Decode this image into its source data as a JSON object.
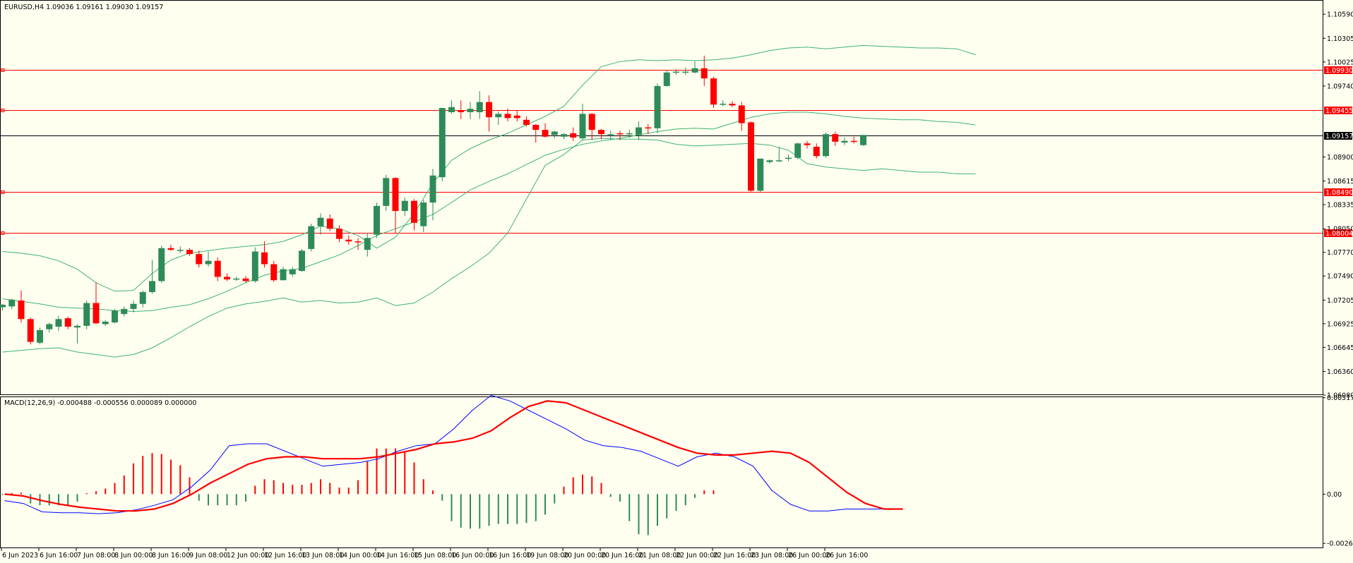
{
  "colors": {
    "background": "#fffff0",
    "bull": "#2e8b57",
    "bear": "#ff0000",
    "band": "#3cb371",
    "macd": "#0000ff",
    "signal": "#ff0000",
    "level_line": "#ff0000",
    "price_line": "#000000"
  },
  "header": {
    "symbol_text": "EURUSD,H4  1.09036 1.09161 1.09030 1.09157",
    "macd_text": "MACD(12,26,9) -0.000488 -0.000556 0.000089 0.000000"
  },
  "chart_data": [
    {
      "type": "candlestick",
      "title": "EURUSD,H4",
      "ylim": [
        1.0608,
        1.1075
      ],
      "y_ticks": [
        "1.10590",
        "1.10305",
        "1.10025",
        "1.09740",
        "1.08900",
        "1.08615",
        "1.08335",
        "1.08050",
        "1.07770",
        "1.07490",
        "1.07205",
        "1.06925",
        "1.06645",
        "1.06360",
        "1.06080"
      ],
      "price_levels": [
        {
          "label": "1.09930",
          "value": 1.0993
        },
        {
          "label": "1.09455",
          "value": 1.09455
        },
        {
          "label": "1.08490",
          "value": 1.0849
        },
        {
          "label": "1.08004",
          "value": 1.08004
        }
      ],
      "current_price": {
        "label": "1.09157",
        "value": 1.09157
      },
      "candles_ohlc": [
        [
          1.0712,
          1.0716,
          1.0708,
          1.0715
        ],
        [
          1.0713,
          1.0722,
          1.071,
          1.0721
        ],
        [
          1.072,
          1.0732,
          1.0694,
          1.0698
        ],
        [
          1.0698,
          1.07,
          1.0668,
          1.0671
        ],
        [
          1.067,
          1.0688,
          1.0668,
          1.0685
        ],
        [
          1.0686,
          1.0694,
          1.0682,
          1.0692
        ],
        [
          1.0689,
          1.0702,
          1.0684,
          1.0698
        ],
        [
          1.0699,
          1.0701,
          1.0686,
          1.0689
        ],
        [
          1.0688,
          1.0692,
          1.0669,
          1.069
        ],
        [
          1.069,
          1.072,
          1.0686,
          1.0717
        ],
        [
          1.0717,
          1.0741,
          1.0692,
          1.0693
        ],
        [
          1.0692,
          1.0697,
          1.069,
          1.0695
        ],
        [
          1.0694,
          1.071,
          1.0693,
          1.0708
        ],
        [
          1.0704,
          1.0713,
          1.0701,
          1.071
        ],
        [
          1.071,
          1.072,
          1.0706,
          1.0716
        ],
        [
          1.0716,
          1.0732,
          1.0712,
          1.073
        ],
        [
          1.073,
          1.0768,
          1.0728,
          1.0743
        ],
        [
          1.0743,
          1.0785,
          1.0741,
          1.0782
        ],
        [
          1.0782,
          1.0786,
          1.0779,
          1.078
        ],
        [
          1.0779,
          1.0784,
          1.0776,
          1.078
        ],
        [
          1.078,
          1.0782,
          1.0773,
          1.0775
        ],
        [
          1.0775,
          1.0779,
          1.0759,
          1.0763
        ],
        [
          1.0763,
          1.0778,
          1.076,
          1.0767
        ],
        [
          1.0767,
          1.0771,
          1.0743,
          1.0748
        ],
        [
          1.0748,
          1.0752,
          1.0743,
          1.0745
        ],
        [
          1.0745,
          1.0748,
          1.0743,
          1.0746
        ],
        [
          1.0746,
          1.0749,
          1.0741,
          1.0743
        ],
        [
          1.0743,
          1.0783,
          1.0741,
          1.0778
        ],
        [
          1.0777,
          1.079,
          1.0759,
          1.0763
        ],
        [
          1.0763,
          1.0767,
          1.0742,
          1.0744
        ],
        [
          1.0744,
          1.076,
          1.0744,
          1.0757
        ],
        [
          1.0751,
          1.076,
          1.0748,
          1.0757
        ],
        [
          1.0755,
          1.0781,
          1.0754,
          1.0779
        ],
        [
          1.0781,
          1.0811,
          1.0778,
          1.0808
        ],
        [
          1.0808,
          1.0823,
          1.0798,
          1.0818
        ],
        [
          1.0817,
          1.0822,
          1.0802,
          1.0805
        ],
        [
          1.0805,
          1.0809,
          1.0789,
          1.0793
        ],
        [
          1.0792,
          1.0797,
          1.0786,
          1.079
        ],
        [
          1.079,
          1.0794,
          1.078,
          1.0789
        ],
        [
          1.078,
          1.08,
          1.0772,
          1.0794
        ],
        [
          1.0798,
          1.0836,
          1.0794,
          1.0832
        ],
        [
          1.0832,
          1.0869,
          1.0826,
          1.0865
        ],
        [
          1.0865,
          1.0866,
          1.08,
          1.0826
        ],
        [
          1.0826,
          1.0842,
          1.082,
          1.0838
        ],
        [
          1.0838,
          1.084,
          1.0803,
          1.0812
        ],
        [
          1.0808,
          1.0839,
          1.0801,
          1.0836
        ],
        [
          1.0836,
          1.0876,
          1.0815,
          1.0868
        ],
        [
          1.0866,
          1.0948,
          1.0861,
          1.0948
        ],
        [
          1.0943,
          1.0957,
          1.0941,
          1.0949
        ],
        [
          1.0945,
          1.0957,
          1.0935,
          1.0943
        ],
        [
          1.0943,
          1.0955,
          1.0935,
          1.0947
        ],
        [
          1.0943,
          1.0968,
          1.0935,
          1.0955
        ],
        [
          1.0955,
          1.0963,
          1.092,
          1.0937
        ],
        [
          1.0937,
          1.0944,
          1.0928,
          1.0941
        ],
        [
          1.0941,
          1.0947,
          1.0932,
          1.0936
        ],
        [
          1.0939,
          1.0945,
          1.0932,
          1.0936
        ],
        [
          1.0934,
          1.0938,
          1.0926,
          1.0928
        ],
        [
          1.0928,
          1.0929,
          1.0907,
          1.0922
        ],
        [
          1.0922,
          1.093,
          1.0913,
          1.0914
        ],
        [
          1.0916,
          1.0921,
          1.0912,
          1.092
        ],
        [
          1.0914,
          1.0918,
          1.0911,
          1.0917
        ],
        [
          1.0918,
          1.0925,
          1.0909,
          1.0913
        ],
        [
          1.0912,
          1.0953,
          1.091,
          1.0941
        ],
        [
          1.0941,
          1.0942,
          1.091,
          1.0922
        ],
        [
          1.0922,
          1.0923,
          1.0911,
          1.0917
        ],
        [
          1.0917,
          1.0921,
          1.091,
          1.0917
        ],
        [
          1.0918,
          1.0921,
          1.091,
          1.0917
        ],
        [
          1.0917,
          1.0922,
          1.0913,
          1.0918
        ],
        [
          1.0916,
          1.0932,
          1.091,
          1.0925
        ],
        [
          1.0925,
          1.0929,
          1.0917,
          1.0924
        ],
        [
          1.0924,
          1.0977,
          1.0918,
          1.0974
        ],
        [
          1.0974,
          1.0993,
          1.0973,
          1.099
        ],
        [
          1.099,
          1.0994,
          1.0987,
          1.0991
        ],
        [
          1.099,
          1.0996,
          1.0987,
          1.0991
        ],
        [
          1.099,
          1.1003,
          1.0989,
          1.0995
        ],
        [
          1.0995,
          1.101,
          1.0974,
          1.0983
        ],
        [
          1.0983,
          1.0985,
          1.0948,
          1.0952
        ],
        [
          1.0953,
          1.0957,
          1.095,
          1.0953
        ],
        [
          1.0953,
          1.0956,
          1.0949,
          1.0951
        ],
        [
          1.0951,
          1.0955,
          1.0921,
          1.093
        ],
        [
          1.0931,
          1.0932,
          1.0849,
          1.085
        ],
        [
          1.085,
          1.0888,
          1.0848,
          1.0888
        ],
        [
          1.0884,
          1.0887,
          1.0882,
          1.0886
        ],
        [
          1.0885,
          1.0902,
          1.0884,
          1.0886
        ],
        [
          1.0888,
          1.0893,
          1.0885,
          1.0889
        ],
        [
          1.0889,
          1.0907,
          1.0887,
          1.0906
        ],
        [
          1.0906,
          1.0909,
          1.09,
          1.0904
        ],
        [
          1.0902,
          1.0906,
          1.0888,
          1.0891
        ],
        [
          1.0891,
          1.0919,
          1.0889,
          1.0917
        ],
        [
          1.0917,
          1.092,
          1.0903,
          1.0908
        ],
        [
          1.0907,
          1.0913,
          1.0904,
          1.0909
        ],
        [
          1.0909,
          1.0914,
          1.0906,
          1.0908
        ],
        [
          1.0904,
          1.0916,
          1.0903,
          1.0916
        ]
      ],
      "bollinger_upper": [
        1.0778,
        1.0776,
        1.0773,
        1.0767,
        1.0757,
        1.0741,
        1.0731,
        1.0732,
        1.0752,
        1.0768,
        1.0776,
        1.0779,
        1.0782,
        1.0784,
        1.0786,
        1.079,
        1.0798,
        1.0808,
        1.0805,
        1.0797,
        1.0782,
        1.0795,
        1.0823,
        1.0859,
        1.0886,
        1.09,
        1.091,
        1.0918,
        1.0928,
        1.0938,
        1.095,
        1.0975,
        1.0997,
        1.1003,
        1.1005,
        1.1004,
        1.1005,
        1.1004,
        1.1005,
        1.1007,
        1.1011,
        1.1016,
        1.1019,
        1.102,
        1.1018,
        1.102,
        1.1022,
        1.1021,
        1.102,
        1.1019,
        1.1019,
        1.1018,
        1.1011
      ],
      "bollinger_mid": [
        1.0722,
        1.0719,
        1.0716,
        1.0712,
        1.0711,
        1.071,
        1.0708,
        1.0707,
        1.0708,
        1.0712,
        1.0715,
        1.0722,
        1.0731,
        1.0741,
        1.075,
        1.0755,
        1.0758,
        1.0766,
        1.0774,
        1.0785,
        1.0797,
        1.0805,
        1.0813,
        1.0822,
        1.0836,
        1.0851,
        1.0861,
        1.087,
        1.0881,
        1.0892,
        1.0899,
        1.0905,
        1.0909,
        1.0912,
        1.0916,
        1.092,
        1.0923,
        1.0924,
        1.0923,
        1.093,
        1.0937,
        1.0941,
        1.0943,
        1.0943,
        1.0941,
        1.0938,
        1.0936,
        1.0935,
        1.0934,
        1.0934,
        1.0932,
        1.0931,
        1.0928
      ],
      "bollinger_lower": [
        1.0659,
        1.0661,
        1.0663,
        1.0664,
        1.0659,
        1.0656,
        1.0653,
        1.0656,
        1.0664,
        1.0676,
        1.0689,
        1.0701,
        1.0711,
        1.0716,
        1.0719,
        1.0723,
        1.0718,
        1.072,
        1.0717,
        1.0718,
        1.0723,
        1.0714,
        1.0717,
        1.073,
        1.0746,
        1.076,
        1.0776,
        1.08,
        1.084,
        1.088,
        1.0893,
        1.091,
        1.0912,
        1.0911,
        1.0911,
        1.091,
        1.0905,
        1.0903,
        1.0904,
        1.0905,
        1.0906,
        1.0904,
        1.0898,
        1.0882,
        1.0878,
        1.0876,
        1.0874,
        1.0876,
        1.0874,
        1.0872,
        1.0872,
        1.087,
        1.087
      ]
    },
    {
      "type": "macd",
      "title": "MACD(12,26,9)",
      "ylim": [
        -0.0029,
        0.0052
      ],
      "y_ticks": [
        "0.005177",
        "0.00",
        "-0.002644"
      ],
      "x_labels": [
        "6 Jun 2023",
        "6 Jun 16:00",
        "7 Jun 08:00",
        "8 Jun 00:00",
        "8 Jun 16:00",
        "9 Jun 08:00",
        "12 Jun 00:00",
        "12 Jun 16:00",
        "13 Jun 08:00",
        "14 Jun 00:00",
        "14 Jun 16:00",
        "15 Jun 08:00",
        "16 Jun 00:00",
        "16 Jun 16:00",
        "19 Jun 08:00",
        "20 Jun 00:00",
        "20 Jun 16:00",
        "21 Jun 08:00",
        "22 Jun 00:00",
        "22 Jun 16:00",
        "23 Jun 08:00",
        "26 Jun 00:00",
        "26 Jun 16:00"
      ],
      "histogram": [
        -5e-05,
        6e-05,
        8e-05,
        -0.0005,
        -0.0006,
        -0.0006,
        -0.0006,
        -0.0006,
        -0.0004,
        5e-05,
        0.00015,
        0.0003,
        0.0006,
        0.001,
        0.00165,
        0.00205,
        0.0022,
        0.00215,
        0.00185,
        0.00155,
        0.0009,
        -0.00035,
        -0.0006,
        -0.0006,
        -0.0006,
        -0.0006,
        -0.0004,
        0.00045,
        0.0008,
        0.00075,
        0.0006,
        0.0005,
        0.0005,
        0.0006,
        0.0008,
        0.0006,
        0.00035,
        0.00035,
        0.00075,
        0.00175,
        0.00245,
        0.00245,
        0.00245,
        0.0023,
        0.0017,
        0.0008,
        0.0002,
        -0.00035,
        -0.00145,
        -0.0018,
        -0.00185,
        -0.00185,
        -0.0017,
        -0.0016,
        -0.0016,
        -0.0016,
        -0.00155,
        -0.00145,
        -0.0011,
        -0.0005,
        0.0004,
        0.0009,
        0.00105,
        0.00095,
        0.0006,
        -0.00015,
        -0.0004,
        -0.00145,
        -0.00215,
        -0.0022,
        -0.0017,
        -0.0013,
        -0.0009,
        -0.0006,
        -0.0002,
        0.0002,
        0.0002
      ]
    }
  ]
}
